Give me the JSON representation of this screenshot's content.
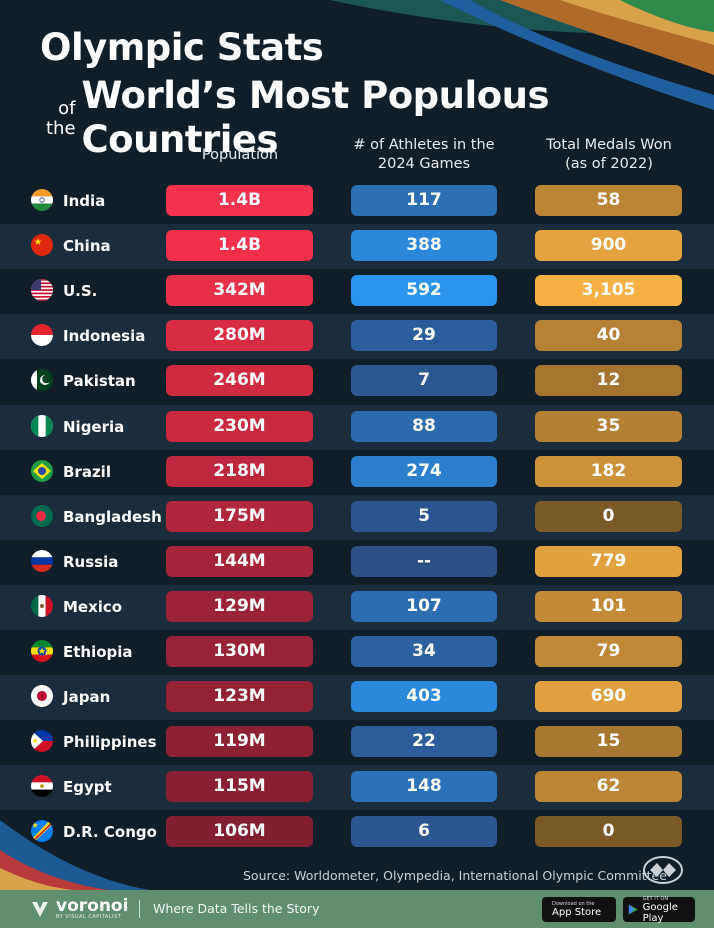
{
  "title": {
    "line1": "Olympic Stats",
    "of": "of",
    "the": "the",
    "line2": "World’s Most Populous Countries"
  },
  "columns": {
    "population": "Population",
    "athletes_l1": "# of Athletes in the",
    "athletes_l2": "2024 Games",
    "medals_l1": "Total Medals Won",
    "medals_l2": "(as of 2022)"
  },
  "chart_data": {
    "type": "table",
    "columns": [
      "Population",
      "# of Athletes in the 2024 Games",
      "Total Medals Won (as of 2022)"
    ],
    "rows": [
      {
        "country": "India",
        "flag": "india-flag-icon",
        "population": "1.4B",
        "population_value": 1400000000,
        "athletes": "117",
        "athletes_value": 117,
        "medals": "58",
        "medals_value": 58
      },
      {
        "country": "China",
        "flag": "china-flag-icon",
        "population": "1.4B",
        "population_value": 1400000000,
        "athletes": "388",
        "athletes_value": 388,
        "medals": "900",
        "medals_value": 900
      },
      {
        "country": "U.S.",
        "flag": "us-flag-icon",
        "population": "342M",
        "population_value": 342000000,
        "athletes": "592",
        "athletes_value": 592,
        "medals": "3,105",
        "medals_value": 3105
      },
      {
        "country": "Indonesia",
        "flag": "indonesia-flag-icon",
        "population": "280M",
        "population_value": 280000000,
        "athletes": "29",
        "athletes_value": 29,
        "medals": "40",
        "medals_value": 40
      },
      {
        "country": "Pakistan",
        "flag": "pakistan-flag-icon",
        "population": "246M",
        "population_value": 246000000,
        "athletes": "7",
        "athletes_value": 7,
        "medals": "12",
        "medals_value": 12
      },
      {
        "country": "Nigeria",
        "flag": "nigeria-flag-icon",
        "population": "230M",
        "population_value": 230000000,
        "athletes": "88",
        "athletes_value": 88,
        "medals": "35",
        "medals_value": 35
      },
      {
        "country": "Brazil",
        "flag": "brazil-flag-icon",
        "population": "218M",
        "population_value": 218000000,
        "athletes": "274",
        "athletes_value": 274,
        "medals": "182",
        "medals_value": 182
      },
      {
        "country": "Bangladesh",
        "flag": "bangladesh-flag-icon",
        "population": "175M",
        "population_value": 175000000,
        "athletes": "5",
        "athletes_value": 5,
        "medals": "0",
        "medals_value": 0
      },
      {
        "country": "Russia",
        "flag": "russia-flag-icon",
        "population": "144M",
        "population_value": 144000000,
        "athletes": "--",
        "athletes_value": null,
        "medals": "779",
        "medals_value": 779
      },
      {
        "country": "Mexico",
        "flag": "mexico-flag-icon",
        "population": "129M",
        "population_value": 129000000,
        "athletes": "107",
        "athletes_value": 107,
        "medals": "101",
        "medals_value": 101
      },
      {
        "country": "Ethiopia",
        "flag": "ethiopia-flag-icon",
        "population": "130M",
        "population_value": 130000000,
        "athletes": "34",
        "athletes_value": 34,
        "medals": "79",
        "medals_value": 79
      },
      {
        "country": "Japan",
        "flag": "japan-flag-icon",
        "population": "123M",
        "population_value": 123000000,
        "athletes": "403",
        "athletes_value": 403,
        "medals": "690",
        "medals_value": 690
      },
      {
        "country": "Philippines",
        "flag": "philippines-flag-icon",
        "population": "119M",
        "population_value": 119000000,
        "athletes": "22",
        "athletes_value": 22,
        "medals": "15",
        "medals_value": 15
      },
      {
        "country": "Egypt",
        "flag": "egypt-flag-icon",
        "population": "115M",
        "population_value": 115000000,
        "athletes": "148",
        "athletes_value": 148,
        "medals": "62",
        "medals_value": 62
      },
      {
        "country": "D.R. Congo",
        "flag": "drcongo-flag-icon",
        "population": "106M",
        "population_value": 106000000,
        "athletes": "6",
        "athletes_value": 6,
        "medals": "0",
        "medals_value": 0
      }
    ]
  },
  "colors": {
    "population_pill": [
      "#f5324e",
      "#f2304c",
      "#e63049",
      "#d82c44",
      "#d02a41",
      "#c8293f",
      "#bd283d",
      "#b0263a",
      "#a52438",
      "#9b2337",
      "#992336",
      "#922234",
      "#8c2133",
      "#882033",
      "#821f31"
    ],
    "athletes_low": "#2c4f86",
    "athletes_high": "#2b95ee",
    "medals_low": "#7c5a28",
    "medals_high": "#f7b044",
    "background": "#0f1e29",
    "row_alt": "#1b2d3c",
    "footer": "#5f8f6e"
  },
  "source": "Source: Worldometer, Olympedia, International Olympic Committee",
  "footer": {
    "brand": "voronoi",
    "brand_sub": "BY VISUAL CAPITALIST",
    "tagline": "Where Data Tells the Story",
    "appstore_small": "Download on the",
    "appstore_big": "App Store",
    "googleplay_small": "GET IT ON",
    "googleplay_big": "Google Play"
  }
}
